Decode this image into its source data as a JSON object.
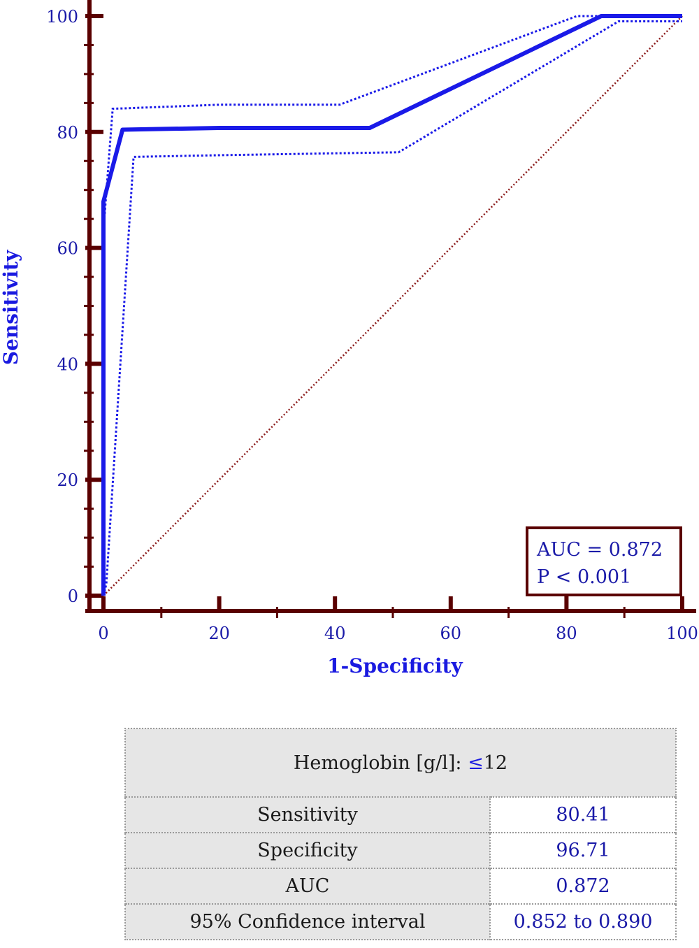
{
  "chart_data": {
    "type": "line",
    "xlabel": "1-Specificity",
    "ylabel": "Sensitivity",
    "xlim": [
      0,
      100
    ],
    "ylim": [
      0,
      100
    ],
    "x_ticks": [
      "0",
      "20",
      "40",
      "60",
      "80",
      "100"
    ],
    "y_ticks": [
      "0",
      "20",
      "40",
      "60",
      "80",
      "100"
    ],
    "series": [
      {
        "role": "roc-curve",
        "style": "solid",
        "color": "#1a1ae8",
        "x": [
          0,
          0,
          0,
          3.3,
          20,
          46,
          86,
          100
        ],
        "y": [
          0,
          68,
          68,
          80.4,
          80.7,
          80.7,
          100,
          100
        ]
      },
      {
        "role": "ci-upper",
        "style": "dotted",
        "color": "#1a1ae8",
        "x": [
          0,
          0,
          1.6,
          20,
          40.8,
          81.8,
          100
        ],
        "y": [
          0,
          63,
          84,
          84.7,
          84.7,
          100,
          100
        ]
      },
      {
        "role": "ci-lower",
        "style": "dotted",
        "color": "#1a1ae8",
        "x": [
          0,
          0.5,
          5.2,
          20,
          51,
          89,
          100
        ],
        "y": [
          0,
          2,
          75.7,
          76,
          76.5,
          99.1,
          99.1
        ]
      },
      {
        "role": "reference-diagonal",
        "style": "dotted",
        "color": "#8b1a1a",
        "x": [
          0,
          100
        ],
        "y": [
          0,
          100
        ]
      }
    ],
    "annotation": {
      "auc": "AUC = 0.872",
      "p": "P < 0.001",
      "placement": "bottom-right"
    },
    "colors": {
      "axis": "#5a0000",
      "curve": "#1a1ae8",
      "tick_text": "#1a1aa8"
    }
  },
  "table": {
    "header_label": "Hemoglobin [g/l]: ",
    "header_symbol": "≤",
    "header_value": "12",
    "rows": [
      {
        "label": "Sensitivity",
        "value": "80.41"
      },
      {
        "label": "Specificity",
        "value": "96.71"
      },
      {
        "label": "AUC",
        "value": "0.872"
      },
      {
        "label": "95% Confidence interval",
        "value": "0.852 to 0.890"
      }
    ]
  }
}
